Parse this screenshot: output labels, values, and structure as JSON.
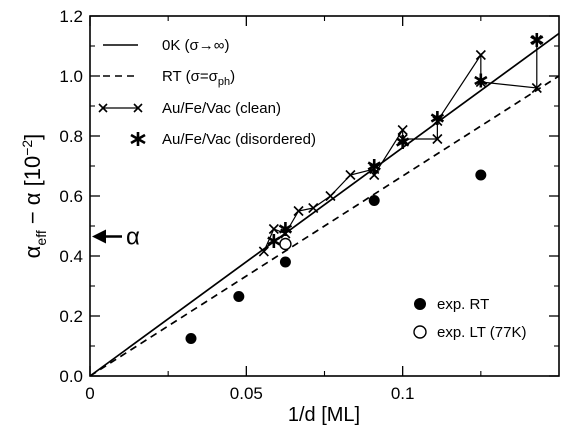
{
  "chart_data": {
    "type": "line",
    "xlabel": "1/d [ML]",
    "ylabel": {
      "base": "α",
      "subscript": "eff",
      "rest": " − α [10",
      "superscript": "−2",
      "close": "]"
    },
    "xlim": [
      0,
      0.15
    ],
    "ylim": [
      0,
      1.2
    ],
    "x_ticks": [
      {
        "value": 0,
        "label": "0"
      },
      {
        "value": 0.05,
        "label": "0.05"
      },
      {
        "value": 0.1,
        "label": "0.1"
      }
    ],
    "y_ticks": [
      {
        "value": 0.0,
        "label": "0.0"
      },
      {
        "value": 0.2,
        "label": "0.2"
      },
      {
        "value": 0.4,
        "label": "0.4"
      },
      {
        "value": 0.6,
        "label": "0.6"
      },
      {
        "value": 0.8,
        "label": "0.8"
      },
      {
        "value": 1.0,
        "label": "1.0"
      },
      {
        "value": 1.2,
        "label": "1.2"
      }
    ],
    "arrow_annotation": {
      "label": "α",
      "y": 0.465
    },
    "series": [
      {
        "name": "0K (σ→∞)",
        "style": "solid-line",
        "x": [
          0,
          0.15
        ],
        "y": [
          0,
          1.142
        ]
      },
      {
        "name": "RT (σ=σph)",
        "name_parts": {
          "base": "RT (σ=σ",
          "sub": "ph",
          "close": ")"
        },
        "style": "dashed-line",
        "x": [
          0,
          0.15
        ],
        "y": [
          0,
          1.0
        ]
      },
      {
        "name": "Au/Fe/Vac (clean)",
        "style": "cross-line",
        "x": [
          0.0556,
          0.0588,
          0.0625,
          0.0667,
          0.0714,
          0.0769,
          0.0833,
          0.0909,
          0.0909,
          0.1,
          0.1,
          0.1111,
          0.1111,
          0.125,
          0.125,
          0.1429,
          0.1429
        ],
        "y": [
          0.415,
          0.49,
          0.475,
          0.55,
          0.56,
          0.6,
          0.67,
          0.69,
          0.67,
          0.82,
          0.79,
          0.79,
          0.85,
          1.07,
          0.98,
          0.96,
          1.12
        ]
      },
      {
        "name": "Au/Fe/Vac (disordered)",
        "style": "asterisk",
        "x": [
          0.0588,
          0.0625,
          0.0909,
          0.1,
          0.1111,
          0.125,
          0.1429
        ],
        "y": [
          0.45,
          0.49,
          0.7,
          0.78,
          0.86,
          0.985,
          1.12
        ]
      },
      {
        "name": "exp. RT",
        "style": "filled-circle",
        "x": [
          0.0323,
          0.0476,
          0.0625,
          0.0909,
          0.125
        ],
        "y": [
          0.125,
          0.265,
          0.38,
          0.585,
          0.67
        ]
      },
      {
        "name": "exp. LT (77K)",
        "style": "open-circle",
        "x": [
          0.0625
        ],
        "y": [
          0.44
        ]
      }
    ]
  }
}
